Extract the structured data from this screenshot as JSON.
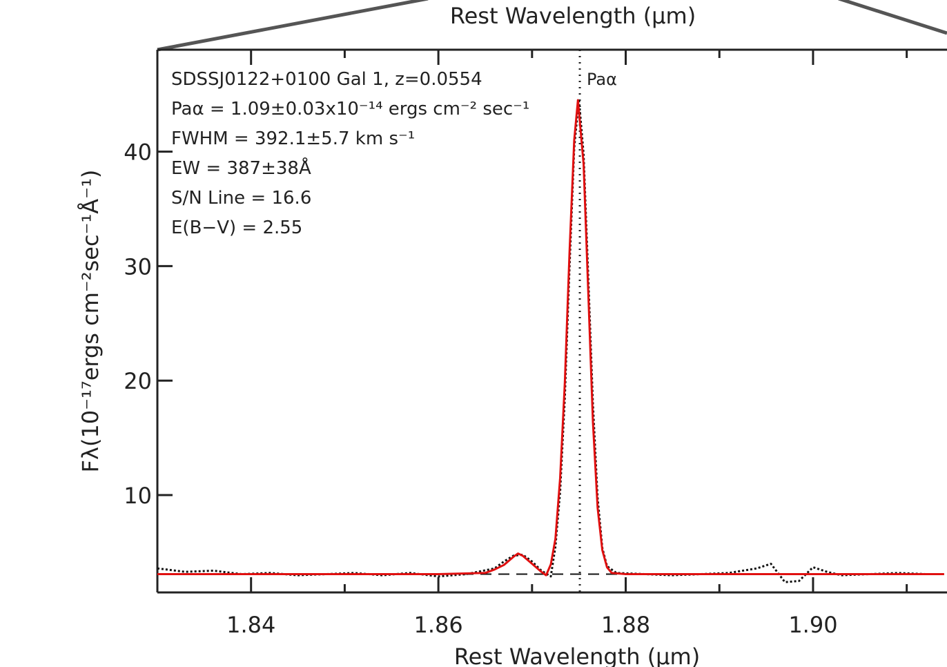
{
  "chart_data": {
    "type": "line",
    "title": "Rest Wavelength (μm)",
    "xlabel": "Rest Wavelength (μm)",
    "ylabel": "Fλ(10⁻¹⁷ergs cm⁻²sec⁻¹Å⁻¹)",
    "text_lines": [
      "SDSSJ0122+0100 Gal 1, z=0.0554",
      "Paα = 1.09±0.03x10⁻¹⁴ ergs cm⁻² sec⁻¹",
      "FWHM = 392.1±5.7 km s⁻¹",
      "EW = 387±38Å",
      "S/N Line = 16.6",
      "E(B−V) = 2.55"
    ],
    "line_marker": {
      "x": 1.8751,
      "label": "Paα"
    },
    "xlim": [
      1.83,
      1.9143
    ],
    "ylim": [
      1.5,
      48.9
    ],
    "xticks": [
      {
        "value": 1.84,
        "label": "1.84"
      },
      {
        "value": 1.86,
        "label": "1.86"
      },
      {
        "value": 1.88,
        "label": "1.88"
      },
      {
        "value": 1.9,
        "label": "1.90"
      }
    ],
    "xminorticks": [
      1.85,
      1.87,
      1.89,
      1.91
    ],
    "yticks": [
      10,
      20,
      30,
      40
    ],
    "series": [
      {
        "color": "#111111",
        "style": "dotted",
        "x": [
          1.83,
          1.833,
          1.836,
          1.839,
          1.842,
          1.845,
          1.848,
          1.851,
          1.854,
          1.857,
          1.86,
          1.863,
          1.866,
          1.867,
          1.868,
          1.869,
          1.87,
          1.871,
          1.872,
          1.8725,
          1.873,
          1.8735,
          1.874,
          1.8745,
          1.875,
          1.8755,
          1.876,
          1.8765,
          1.877,
          1.8775,
          1.878,
          1.879,
          1.882,
          1.885,
          1.888,
          1.891,
          1.894,
          1.8955,
          1.897,
          1.8985,
          1.9,
          1.9015,
          1.903,
          1.906,
          1.909,
          1.912,
          1.914
        ],
        "values": [
          3.6,
          3.3,
          3.4,
          3.1,
          3.2,
          3.0,
          3.1,
          3.2,
          3.0,
          3.2,
          2.9,
          3.1,
          3.6,
          4.2,
          4.7,
          4.8,
          4.2,
          3.4,
          2.9,
          5.5,
          10.3,
          18.5,
          29.9,
          40.3,
          44.6,
          39.8,
          29.2,
          18.0,
          9.8,
          5.4,
          3.8,
          3.2,
          3.1,
          3.0,
          3.1,
          3.2,
          3.6,
          4.0,
          2.4,
          2.5,
          3.7,
          3.3,
          3.0,
          3.1,
          3.2,
          3.1,
          3.1
        ]
      },
      {
        "color": "#111111",
        "style": "dashed",
        "x": [
          1.83,
          1.9143
        ],
        "values": [
          3.1,
          3.1
        ]
      },
      {
        "color": "#e01010",
        "style": "solid",
        "x": [
          1.83,
          1.84,
          1.85,
          1.86,
          1.865,
          1.866,
          1.867,
          1.868,
          1.8685,
          1.869,
          1.87,
          1.871,
          1.8715,
          1.872,
          1.8725,
          1.873,
          1.8735,
          1.874,
          1.8745,
          1.8749,
          1.8755,
          1.876,
          1.8765,
          1.877,
          1.8775,
          1.878,
          1.8785,
          1.88,
          1.89,
          1.9,
          1.914
        ],
        "values": [
          3.1,
          3.1,
          3.1,
          3.1,
          3.2,
          3.5,
          3.9,
          4.6,
          4.9,
          4.7,
          4.0,
          3.3,
          3.0,
          3.95,
          6.2,
          11.5,
          19.8,
          31.2,
          41.0,
          44.5,
          38.9,
          27.8,
          16.4,
          8.9,
          5.2,
          3.7,
          3.2,
          3.1,
          3.1,
          3.1,
          3.1
        ]
      }
    ]
  }
}
